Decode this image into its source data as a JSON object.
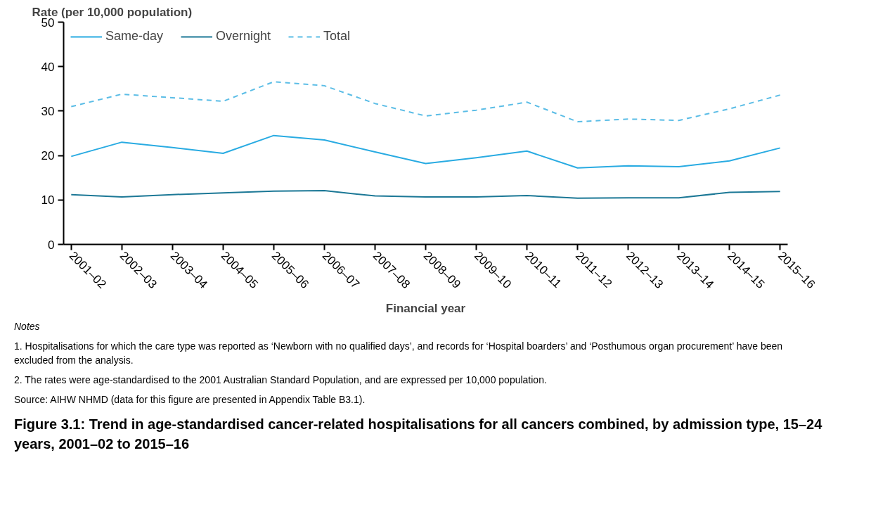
{
  "chart_data": {
    "type": "line",
    "title": "Figure 3.1: Trend in age-standardised cancer-related hospitalisations for all cancers combined, by admission type, 15–24 years, 2001–02 to 2015–16",
    "xlabel": "Financial year",
    "ylabel": "Rate (per 10,000 population)",
    "categories": [
      "2001–02",
      "2002–03",
      "2003–04",
      "2004–05",
      "2005–06",
      "2006–07",
      "2007–08",
      "2008–09",
      "2009–10",
      "2010–11",
      "2011–12",
      "2012–13",
      "2013–14",
      "2014–15",
      "2015–16"
    ],
    "series": [
      {
        "name": "Same-day",
        "color": "#29abe2",
        "line_style": "solid",
        "values": [
          19.8,
          23.0,
          21.8,
          20.5,
          24.5,
          23.5,
          20.8,
          18.2,
          19.5,
          21.0,
          17.2,
          17.7,
          17.5,
          18.8,
          21.7
        ]
      },
      {
        "name": "Overnight",
        "color": "#1c7896",
        "line_style": "solid",
        "values": [
          11.2,
          10.7,
          11.2,
          11.6,
          12.0,
          12.1,
          10.9,
          10.7,
          10.7,
          11.0,
          10.4,
          10.5,
          10.5,
          11.7,
          11.9
        ]
      },
      {
        "name": "Total",
        "color": "#5bbde6",
        "line_style": "dashed",
        "values": [
          31.0,
          33.8,
          33.0,
          32.2,
          36.6,
          35.7,
          31.7,
          28.9,
          30.2,
          32.0,
          27.6,
          28.2,
          27.9,
          30.5,
          33.6
        ]
      }
    ],
    "ylim": [
      0,
      50
    ],
    "yticks": [
      0,
      10,
      20,
      30,
      40,
      50
    ],
    "grid": false,
    "legend": "top left",
    "annotations": [
      "Notes",
      "1. Hospitalisations for which the care type was reported as ‘Newborn with no qualified days’, and records for ‘Hospital boarders’ and ‘Posthumous organ procurement’ have been excluded from the analysis.",
      "2. The rates were age-standardised to the 2001 Australian Standard Population, and are expressed per 10,000 population.",
      "Source: AIHW NHMD (data for this figure are presented in Appendix Table B3.1)."
    ]
  }
}
